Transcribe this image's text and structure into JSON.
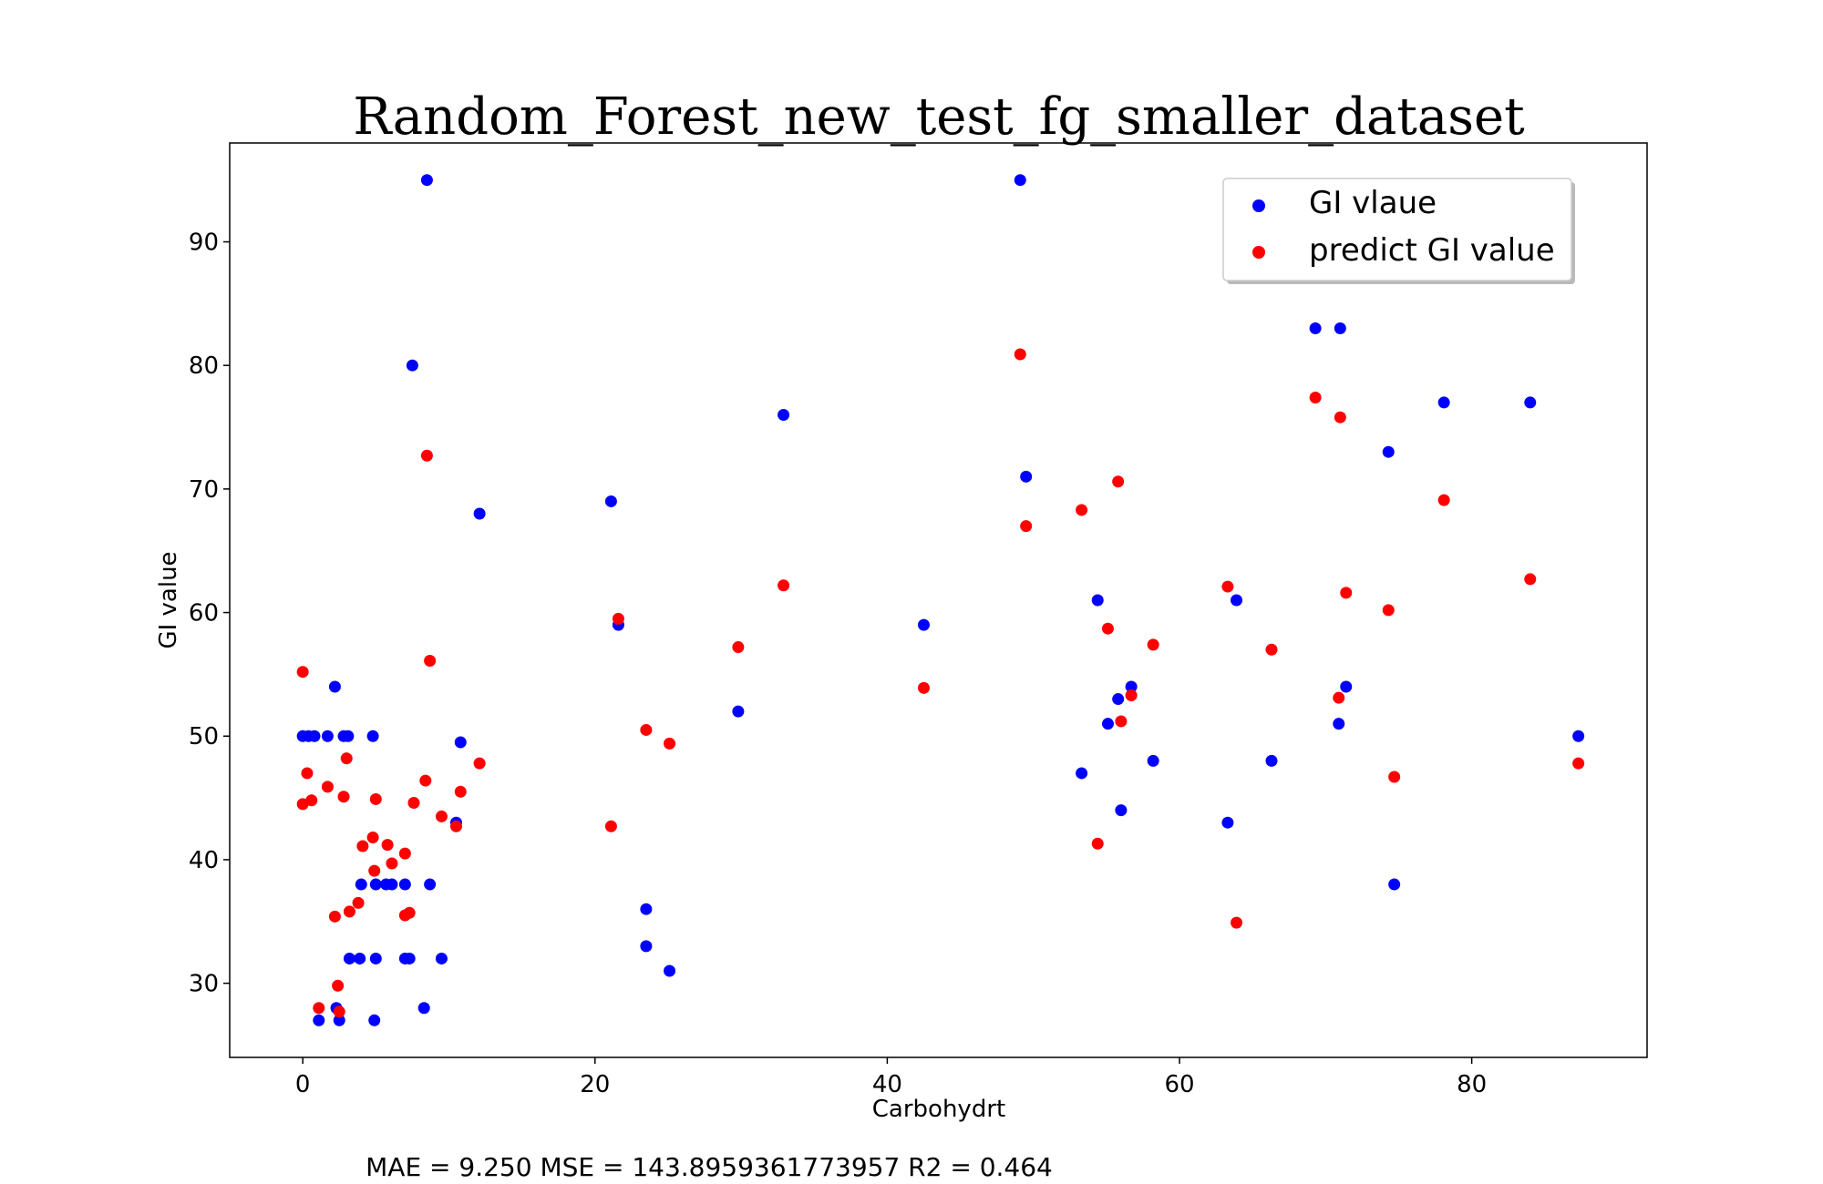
{
  "chart_data": {
    "type": "scatter",
    "title": "Random_Forest_new_test_fg_smaller_dataset",
    "xlabel": "Carbohydrt",
    "ylabel": "GI value",
    "xlim": [
      -5,
      92
    ],
    "ylim": [
      24,
      98
    ],
    "xticks": [
      0,
      20,
      40,
      60,
      80
    ],
    "yticks": [
      30,
      40,
      50,
      60,
      70,
      80,
      90
    ],
    "grid": false,
    "legend_position": "top-right",
    "footer": "MAE = 9.250 MSE = 143.8959361773957 R2 = 0.464",
    "series": [
      {
        "name": "GI vlaue",
        "color": "#0000ff",
        "points": [
          [
            0.0,
            50
          ],
          [
            0.4,
            50
          ],
          [
            0.8,
            50
          ],
          [
            1.1,
            27
          ],
          [
            1.7,
            50
          ],
          [
            2.2,
            54
          ],
          [
            2.3,
            28
          ],
          [
            2.5,
            27
          ],
          [
            2.8,
            50
          ],
          [
            3.1,
            50
          ],
          [
            3.2,
            32
          ],
          [
            3.9,
            32
          ],
          [
            4.0,
            38
          ],
          [
            4.8,
            50
          ],
          [
            4.9,
            27
          ],
          [
            5.0,
            32
          ],
          [
            5.0,
            38
          ],
          [
            5.7,
            38
          ],
          [
            6.1,
            38
          ],
          [
            7.0,
            32
          ],
          [
            7.0,
            38
          ],
          [
            7.3,
            32
          ],
          [
            7.5,
            80
          ],
          [
            8.3,
            28
          ],
          [
            8.5,
            95
          ],
          [
            8.7,
            38
          ],
          [
            9.5,
            32
          ],
          [
            10.5,
            43
          ],
          [
            10.8,
            49.5
          ],
          [
            12.1,
            68
          ],
          [
            21.1,
            69
          ],
          [
            21.6,
            59
          ],
          [
            23.5,
            36
          ],
          [
            23.5,
            33
          ],
          [
            25.1,
            31
          ],
          [
            29.8,
            52
          ],
          [
            32.9,
            76
          ],
          [
            42.5,
            59
          ],
          [
            49.1,
            95
          ],
          [
            49.5,
            71
          ],
          [
            53.3,
            47
          ],
          [
            54.4,
            61
          ],
          [
            55.1,
            51
          ],
          [
            55.8,
            53
          ],
          [
            56.0,
            44
          ],
          [
            56.7,
            54
          ],
          [
            58.2,
            48
          ],
          [
            63.3,
            43
          ],
          [
            63.9,
            61
          ],
          [
            66.3,
            48
          ],
          [
            69.3,
            83
          ],
          [
            70.9,
            51
          ],
          [
            71.0,
            83
          ],
          [
            71.4,
            54
          ],
          [
            74.3,
            73
          ],
          [
            74.7,
            38
          ],
          [
            78.1,
            77
          ],
          [
            84.0,
            77
          ],
          [
            87.3,
            50
          ]
        ]
      },
      {
        "name": "predict GI value",
        "color": "#ff0000",
        "points": [
          [
            0.0,
            55.2
          ],
          [
            0.0,
            44.5
          ],
          [
            0.3,
            47
          ],
          [
            0.6,
            44.8
          ],
          [
            1.1,
            28
          ],
          [
            1.7,
            45.9
          ],
          [
            2.2,
            35.4
          ],
          [
            2.4,
            29.8
          ],
          [
            2.5,
            27.7
          ],
          [
            2.8,
            45.1
          ],
          [
            3.0,
            48.2
          ],
          [
            3.2,
            35.8
          ],
          [
            3.8,
            36.5
          ],
          [
            4.1,
            41.1
          ],
          [
            4.8,
            41.8
          ],
          [
            4.9,
            39.1
          ],
          [
            5.0,
            44.9
          ],
          [
            5.8,
            41.2
          ],
          [
            6.1,
            39.7
          ],
          [
            7.0,
            35.5
          ],
          [
            7.0,
            40.5
          ],
          [
            7.3,
            35.7
          ],
          [
            7.6,
            44.6
          ],
          [
            8.4,
            46.4
          ],
          [
            8.5,
            72.7
          ],
          [
            8.7,
            56.1
          ],
          [
            9.5,
            43.5
          ],
          [
            10.5,
            42.7
          ],
          [
            10.8,
            45.5
          ],
          [
            12.1,
            47.8
          ],
          [
            21.1,
            42.7
          ],
          [
            21.6,
            59.5
          ],
          [
            23.5,
            50.5
          ],
          [
            25.1,
            49.4
          ],
          [
            29.8,
            57.2
          ],
          [
            32.9,
            62.2
          ],
          [
            42.5,
            53.9
          ],
          [
            49.1,
            80.9
          ],
          [
            49.5,
            67
          ],
          [
            53.3,
            68.3
          ],
          [
            54.4,
            41.3
          ],
          [
            55.1,
            58.7
          ],
          [
            55.8,
            70.6
          ],
          [
            56.0,
            51.2
          ],
          [
            56.7,
            53.3
          ],
          [
            58.2,
            57.4
          ],
          [
            63.3,
            62.1
          ],
          [
            63.9,
            34.9
          ],
          [
            66.3,
            57
          ],
          [
            69.3,
            77.4
          ],
          [
            70.9,
            53.1
          ],
          [
            71.0,
            75.8
          ],
          [
            71.4,
            61.6
          ],
          [
            74.3,
            60.2
          ],
          [
            74.7,
            46.7
          ],
          [
            78.1,
            69.1
          ],
          [
            84.0,
            62.7
          ],
          [
            87.3,
            47.8
          ]
        ]
      }
    ]
  }
}
